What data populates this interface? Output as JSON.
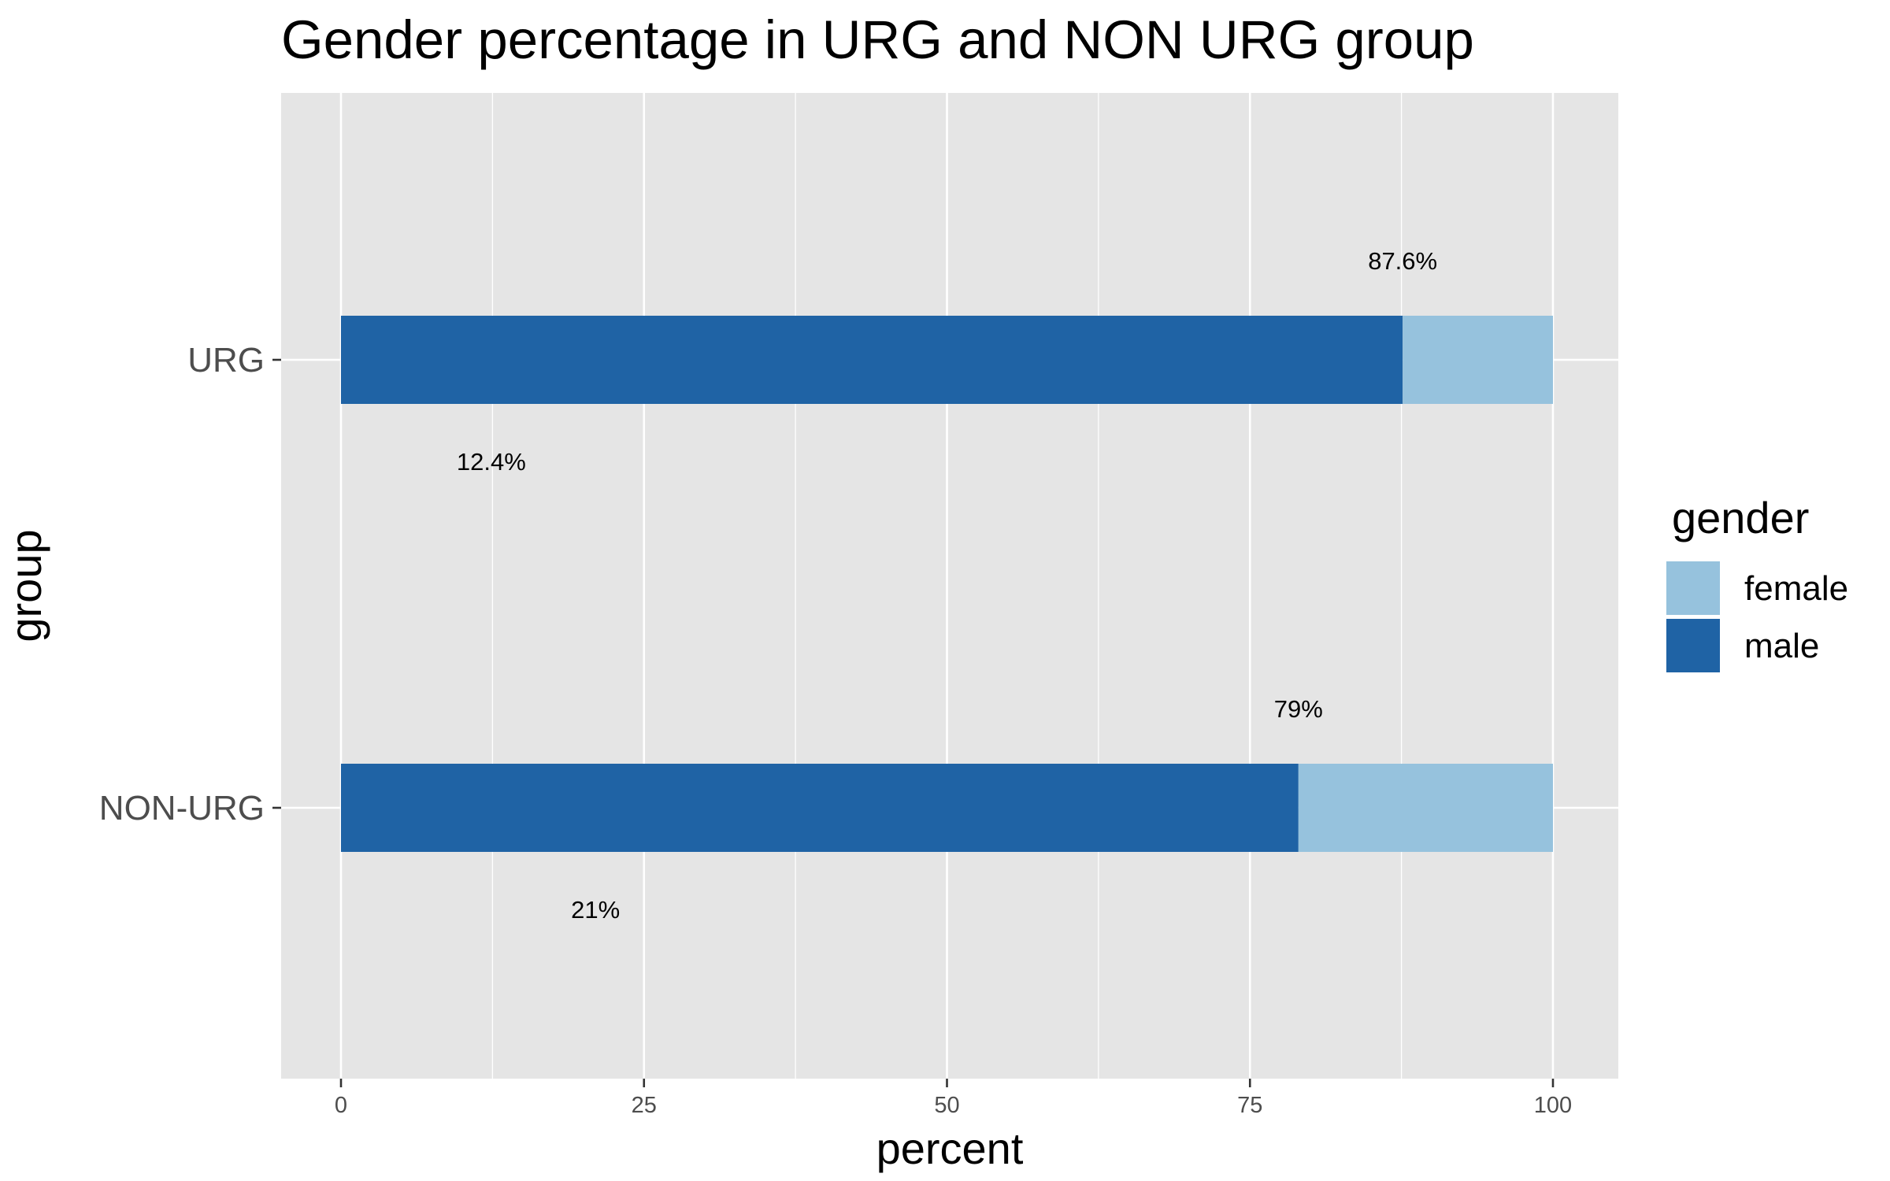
{
  "chart_data": {
    "type": "bar",
    "orientation": "horizontal",
    "stacked": true,
    "title": "Gender percentage in URG and NON URG group",
    "xlabel": "percent",
    "ylabel": "group",
    "categories": [
      "URG",
      "NON-URG"
    ],
    "xlim": [
      0,
      100
    ],
    "x_ticks": [
      "0",
      "25",
      "50",
      "75",
      "100"
    ],
    "series": [
      {
        "name": "male",
        "values": [
          87.6,
          79
        ],
        "color": "#1f63a5"
      },
      {
        "name": "female",
        "values": [
          12.4,
          21
        ],
        "color": "#96c2dd"
      }
    ],
    "data_labels": {
      "male": [
        "87.6%",
        "79%"
      ],
      "female": [
        "12.4%",
        "21%"
      ]
    },
    "legend": {
      "title": "gender",
      "position": "right",
      "entries": [
        {
          "label": "female",
          "color": "#96c2dd"
        },
        {
          "label": "male",
          "color": "#1f63a5"
        }
      ]
    },
    "grid": true,
    "panel_background": "#e5e5e5",
    "grid_color": "#ffffff"
  }
}
